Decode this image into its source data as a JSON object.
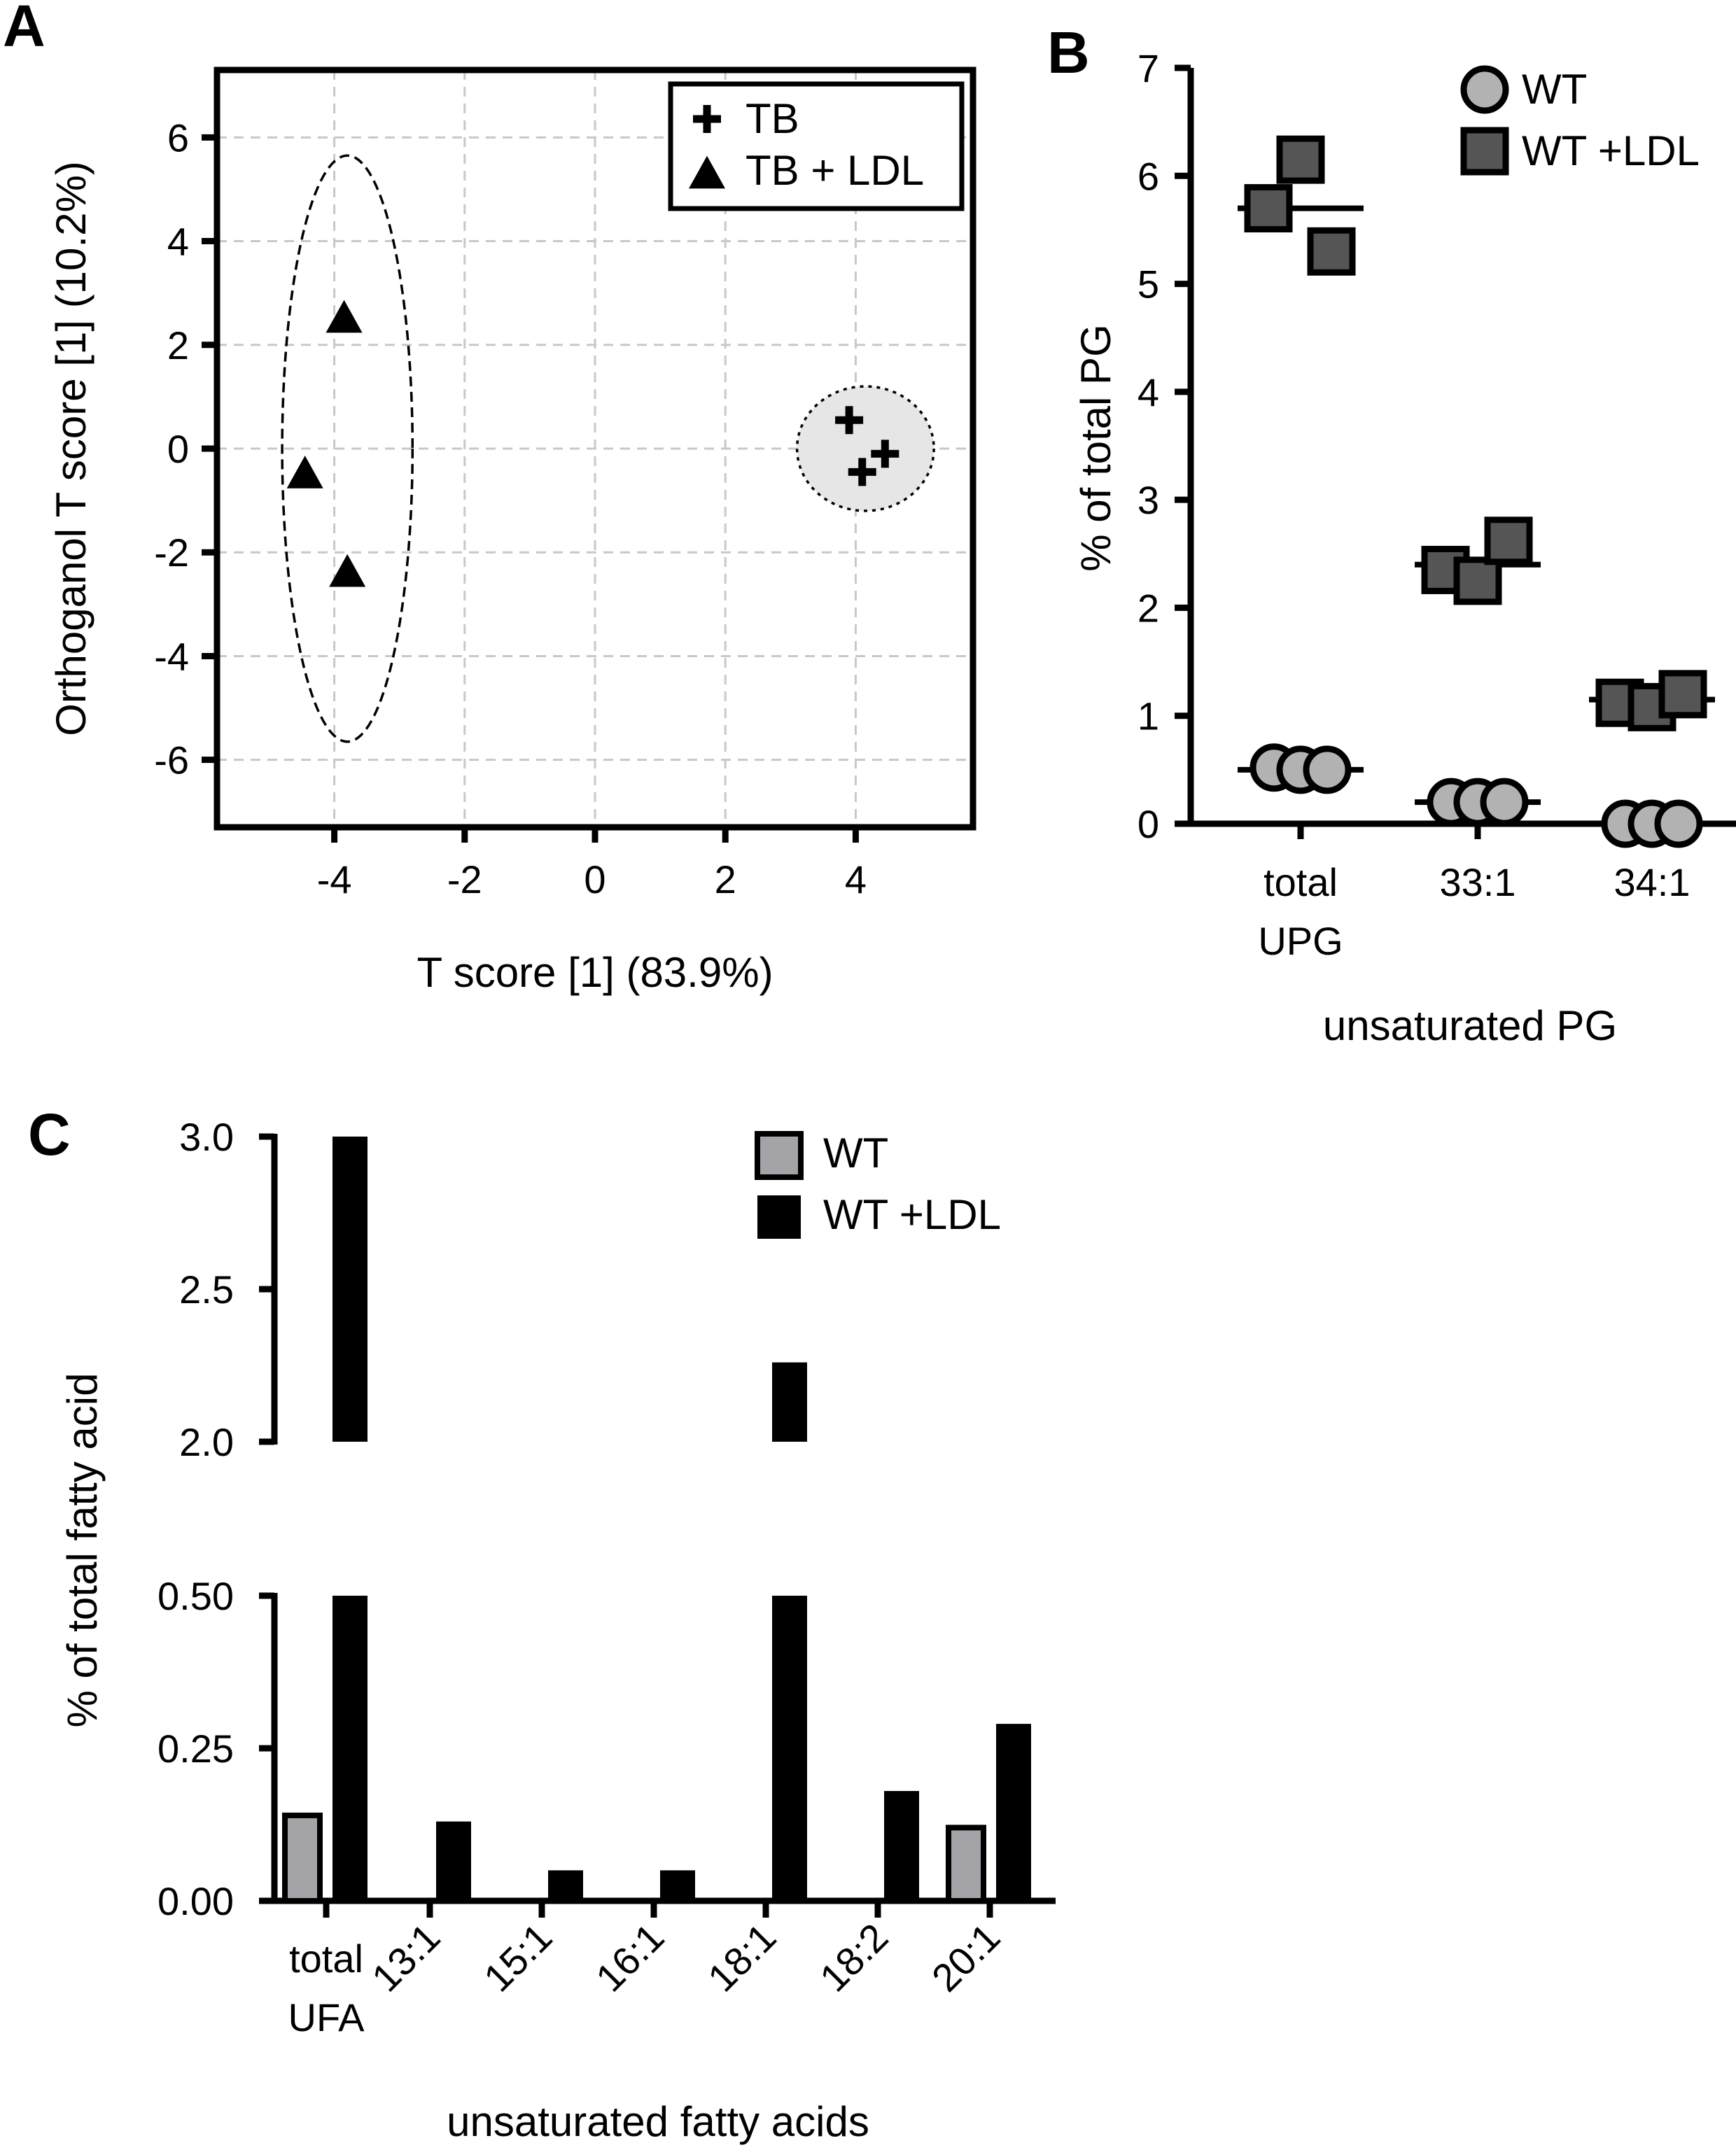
{
  "panels": {
    "a": {
      "label": "A"
    },
    "b": {
      "label": "B"
    },
    "c": {
      "label": "C"
    }
  },
  "colors": {
    "wt_fill": "#b2b2b2",
    "wt_ldl_fill": "#555555",
    "bar_wt": "#a4a4a8",
    "bar_wt_ldl": "#000000",
    "grid": "#c8c8c8",
    "ellipse_fill": "#e6e6e6"
  },
  "chart_data": [
    {
      "id": "A",
      "type": "scatter",
      "title": "",
      "xlabel": "T score [1] (83.9%)",
      "ylabel": "Orthoganol T score [1] (10.2%)",
      "xlim": [
        -5.8,
        5.8
      ],
      "ylim": [
        -7.3,
        7.3
      ],
      "xticks": [
        -4,
        -2,
        0,
        2,
        4
      ],
      "xtick_labels": [
        "-4",
        "-2",
        "0",
        "2",
        "4"
      ],
      "yticks": [
        -6,
        -4,
        -2,
        0,
        2,
        4,
        6
      ],
      "ytick_labels": [
        "-6",
        "-4",
        "-2",
        "0",
        "2",
        "4",
        "6"
      ],
      "grid": true,
      "legend_position": "top-right",
      "series": [
        {
          "name": "TB",
          "marker": "plus",
          "points": [
            [
              3.9,
              0.55
            ],
            [
              4.45,
              -0.1
            ],
            [
              4.1,
              -0.45
            ]
          ]
        },
        {
          "name": "TB + LDL",
          "marker": "triangle",
          "points": [
            [
              -3.85,
              2.55
            ],
            [
              -4.45,
              -0.45
            ],
            [
              -3.8,
              -2.35
            ]
          ]
        }
      ],
      "ellipses": [
        {
          "group": "TB + LDL",
          "center": [
            -3.8,
            0
          ],
          "radius": [
            1.0,
            5.65
          ],
          "rotation_deg": 0,
          "style": "dashed"
        },
        {
          "group": "TB",
          "center": [
            4.15,
            0
          ],
          "radius": [
            1.05,
            1.2
          ],
          "rotation_deg": 0,
          "style": "dotted-filled"
        }
      ]
    },
    {
      "id": "B",
      "type": "scatter",
      "title": "",
      "xlabel": "unsaturated PG",
      "ylabel": "% of total PG",
      "categories": [
        "total UPG",
        "33:1",
        "34:1"
      ],
      "category_lines": [
        [
          "total",
          "UPG"
        ],
        [
          "33:1"
        ],
        [
          "34:1"
        ]
      ],
      "ylim": [
        0,
        7
      ],
      "yticks": [
        0,
        1,
        2,
        3,
        4,
        5,
        6,
        7
      ],
      "ytick_labels": [
        "0",
        "1",
        "2",
        "3",
        "4",
        "5",
        "6",
        "7"
      ],
      "grid": false,
      "legend_position": "top-right",
      "series": [
        {
          "name": "WT",
          "marker": "circle",
          "mean": [
            0.5,
            0.2,
            0.0
          ],
          "values": [
            [
              0.52,
              0.5,
              0.5
            ],
            [
              0.2,
              0.2,
              0.2
            ],
            [
              0.0,
              0.0,
              0.0
            ]
          ]
        },
        {
          "name": "WT +LDL",
          "marker": "square",
          "mean": [
            5.7,
            2.4,
            1.15
          ],
          "values": [
            [
              5.7,
              6.15,
              5.3
            ],
            [
              2.35,
              2.25,
              2.62
            ],
            [
              1.12,
              1.08,
              1.2
            ]
          ]
        }
      ]
    },
    {
      "id": "C",
      "type": "bar",
      "title": "",
      "xlabel": "unsaturated fatty acids",
      "ylabel": "% of total fatty acid",
      "categories": [
        "total UFA",
        "13:1",
        "15:1",
        "16:1",
        "18:1",
        "18:2",
        "20:1"
      ],
      "category_lines": [
        [
          "total",
          "UFA"
        ],
        [
          "13:1"
        ],
        [
          "15:1"
        ],
        [
          "16:1"
        ],
        [
          "18:1"
        ],
        [
          "18:2"
        ],
        [
          "20:1"
        ]
      ],
      "broken_axis": true,
      "segments": [
        {
          "ylim": [
            0,
            0.5
          ],
          "yticks": [
            0.0,
            0.25,
            0.5
          ],
          "ytick_labels": [
            "0.00",
            "0.25",
            "0.50"
          ]
        },
        {
          "ylim": [
            2.0,
            3.0
          ],
          "yticks": [
            2.0,
            2.5,
            3.0
          ],
          "ytick_labels": [
            "2.0",
            "2.5",
            "3.0"
          ]
        }
      ],
      "legend_position": "top-right",
      "series": [
        {
          "name": "WT",
          "values": [
            0.14,
            0.0,
            0.0,
            0.0,
            0.0,
            0.0,
            0.12
          ]
        },
        {
          "name": "WT +LDL",
          "values": [
            3.0,
            0.13,
            0.05,
            0.05,
            2.26,
            0.18,
            0.29
          ]
        }
      ]
    }
  ]
}
